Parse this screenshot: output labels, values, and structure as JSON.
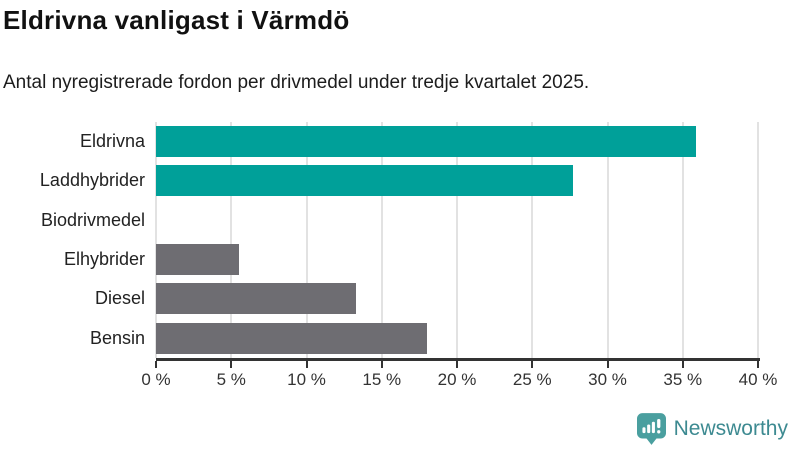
{
  "header": {
    "title": "Eldrivna vanligast i Värmdö",
    "subtitle": "Antal nyregistrerade fordon per drivmedel under tredje kvartalet 2025."
  },
  "chart_data": {
    "type": "bar",
    "orientation": "horizontal",
    "title": "Eldrivna vanligast i Värmdö",
    "subtitle": "Antal nyregistrerade fordon per drivmedel under tredje kvartalet 2025.",
    "categories": [
      "Eldrivna",
      "Laddhybrider",
      "Biodrivmedel",
      "Elhybrider",
      "Diesel",
      "Bensin"
    ],
    "values": [
      35.9,
      27.7,
      0,
      5.5,
      13.3,
      18.0
    ],
    "unit": "%",
    "xlim": [
      0,
      40
    ],
    "x_tick_values": [
      0,
      5,
      10,
      15,
      20,
      25,
      30,
      35,
      40
    ],
    "x_tick_labels": [
      "0 %",
      "5 %",
      "10 %",
      "15 %",
      "20 %",
      "25 %",
      "30 %",
      "35 %",
      "40 %"
    ],
    "grid": true,
    "legend": false,
    "bar_colors": [
      "#00a099",
      "#00a099",
      "#6e6d72",
      "#6e6d72",
      "#6e6d72",
      "#6e6d72"
    ],
    "highlight_color": "#00a099",
    "default_color": "#6e6d72",
    "gridline_color": "#e2e2e2",
    "axis_color": "#333333"
  },
  "footer": {
    "brand": "Newsworthy",
    "brand_color": "#3d8a91",
    "icon": "newsworthy-logo-icon",
    "icon_color": "#4a9f9f"
  }
}
